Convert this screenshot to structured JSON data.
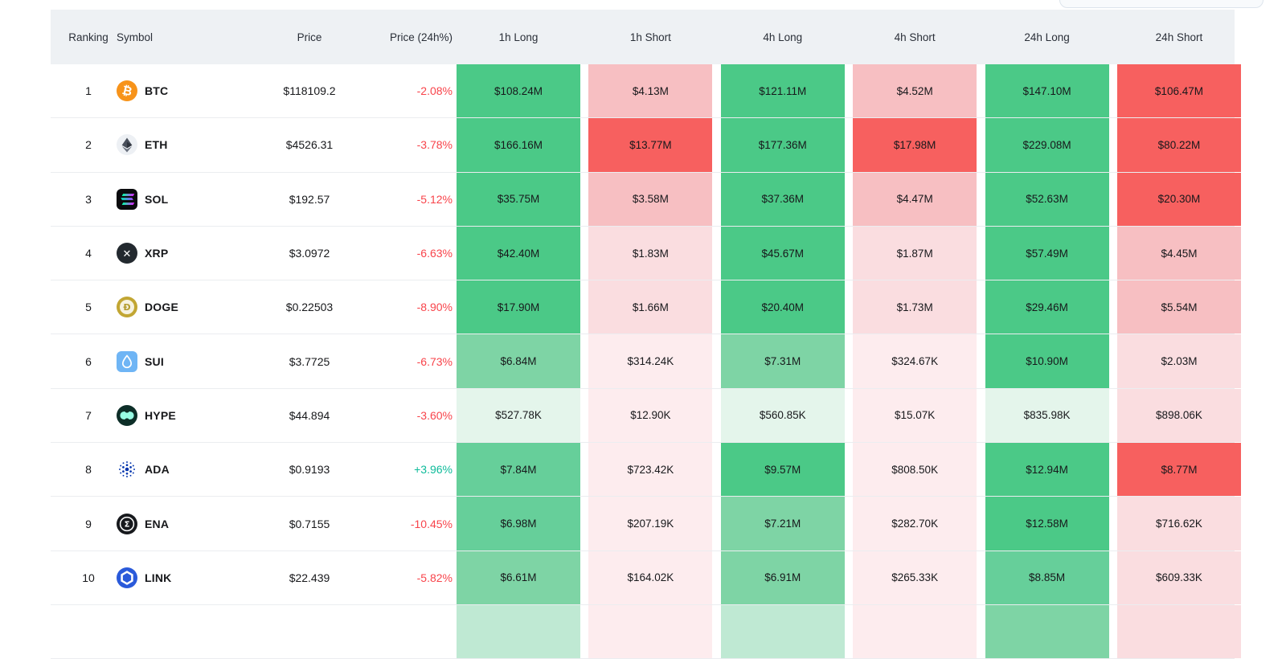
{
  "topbar": {
    "partial_button": {
      "label": ""
    }
  },
  "table": {
    "columns": [
      "Ranking",
      "Symbol",
      "Price",
      "Price (24h%)",
      "1h Long",
      "1h Short",
      "4h Long",
      "4h Short",
      "24h Long",
      "24h Short"
    ],
    "header_bg": "#eef1f4",
    "change_colors": {
      "up": "#0ebb9a",
      "down": "#f8444b"
    },
    "palette": {
      "g1": "#e4f5eb",
      "g2": "#bfe9d3",
      "g3": "#7ed4a5",
      "g4": "#66cf9a",
      "g5": "#4bc987",
      "r1": "#fdecee",
      "r2": "#fadde0",
      "r3": "#f7bfc2",
      "r4": "#f5a3a7",
      "r5": "#f7605f"
    },
    "icon_colors": {
      "btc": "#f7931a",
      "eth": "#edf0f4",
      "sol": "#0b0b0e",
      "xrp": "#23292f",
      "doge": "#c2a633",
      "sui": "#6fb5f5",
      "hype": "#0d2e28",
      "hype_fg": "#97fce4",
      "ada": "#0033ad",
      "ena": "#17191d",
      "link": "#2a5ada"
    },
    "rows": [
      {
        "rank": "1",
        "symbol": "BTC",
        "icon": "btc-icon",
        "price": "$118109.2",
        "change": "-2.08%",
        "dir": "down",
        "cells": [
          {
            "value": "$108.24M",
            "color": "g5"
          },
          {
            "value": "$4.13M",
            "color": "r3"
          },
          {
            "value": "$121.11M",
            "color": "g5"
          },
          {
            "value": "$4.52M",
            "color": "r3"
          },
          {
            "value": "$147.10M",
            "color": "g5"
          },
          {
            "value": "$106.47M",
            "color": "r5"
          }
        ]
      },
      {
        "rank": "2",
        "symbol": "ETH",
        "icon": "eth-icon",
        "price": "$4526.31",
        "change": "-3.78%",
        "dir": "down",
        "cells": [
          {
            "value": "$166.16M",
            "color": "g5"
          },
          {
            "value": "$13.77M",
            "color": "r5"
          },
          {
            "value": "$177.36M",
            "color": "g5"
          },
          {
            "value": "$17.98M",
            "color": "r5"
          },
          {
            "value": "$229.08M",
            "color": "g5"
          },
          {
            "value": "$80.22M",
            "color": "r5"
          }
        ]
      },
      {
        "rank": "3",
        "symbol": "SOL",
        "icon": "sol-icon",
        "price": "$192.57",
        "change": "-5.12%",
        "dir": "down",
        "cells": [
          {
            "value": "$35.75M",
            "color": "g5"
          },
          {
            "value": "$3.58M",
            "color": "r3"
          },
          {
            "value": "$37.36M",
            "color": "g5"
          },
          {
            "value": "$4.47M",
            "color": "r3"
          },
          {
            "value": "$52.63M",
            "color": "g5"
          },
          {
            "value": "$20.30M",
            "color": "r5"
          }
        ]
      },
      {
        "rank": "4",
        "symbol": "XRP",
        "icon": "xrp-icon",
        "price": "$3.0972",
        "change": "-6.63%",
        "dir": "down",
        "cells": [
          {
            "value": "$42.40M",
            "color": "g5"
          },
          {
            "value": "$1.83M",
            "color": "r2"
          },
          {
            "value": "$45.67M",
            "color": "g5"
          },
          {
            "value": "$1.87M",
            "color": "r2"
          },
          {
            "value": "$57.49M",
            "color": "g5"
          },
          {
            "value": "$4.45M",
            "color": "r3"
          }
        ]
      },
      {
        "rank": "5",
        "symbol": "DOGE",
        "icon": "doge-icon",
        "price": "$0.22503",
        "change": "-8.90%",
        "dir": "down",
        "cells": [
          {
            "value": "$17.90M",
            "color": "g5"
          },
          {
            "value": "$1.66M",
            "color": "r2"
          },
          {
            "value": "$20.40M",
            "color": "g5"
          },
          {
            "value": "$1.73M",
            "color": "r2"
          },
          {
            "value": "$29.46M",
            "color": "g5"
          },
          {
            "value": "$5.54M",
            "color": "r3"
          }
        ]
      },
      {
        "rank": "6",
        "symbol": "SUI",
        "icon": "sui-icon",
        "price": "$3.7725",
        "change": "-6.73%",
        "dir": "down",
        "cells": [
          {
            "value": "$6.84M",
            "color": "g3"
          },
          {
            "value": "$314.24K",
            "color": "r1"
          },
          {
            "value": "$7.31M",
            "color": "g3"
          },
          {
            "value": "$324.67K",
            "color": "r1"
          },
          {
            "value": "$10.90M",
            "color": "g5"
          },
          {
            "value": "$2.03M",
            "color": "r2"
          }
        ]
      },
      {
        "rank": "7",
        "symbol": "HYPE",
        "icon": "hype-icon",
        "price": "$44.894",
        "change": "-3.60%",
        "dir": "down",
        "cells": [
          {
            "value": "$527.78K",
            "color": "g1"
          },
          {
            "value": "$12.90K",
            "color": "r1"
          },
          {
            "value": "$560.85K",
            "color": "g1"
          },
          {
            "value": "$15.07K",
            "color": "r1"
          },
          {
            "value": "$835.98K",
            "color": "g1"
          },
          {
            "value": "$898.06K",
            "color": "r2"
          }
        ]
      },
      {
        "rank": "8",
        "symbol": "ADA",
        "icon": "ada-icon",
        "price": "$0.9193",
        "change": "+3.96%",
        "dir": "up",
        "cells": [
          {
            "value": "$7.84M",
            "color": "g4"
          },
          {
            "value": "$723.42K",
            "color": "r1"
          },
          {
            "value": "$9.57M",
            "color": "g5"
          },
          {
            "value": "$808.50K",
            "color": "r1"
          },
          {
            "value": "$12.94M",
            "color": "g5"
          },
          {
            "value": "$8.77M",
            "color": "r5"
          }
        ]
      },
      {
        "rank": "9",
        "symbol": "ENA",
        "icon": "ena-icon",
        "price": "$0.7155",
        "change": "-10.45%",
        "dir": "down",
        "cells": [
          {
            "value": "$6.98M",
            "color": "g4"
          },
          {
            "value": "$207.19K",
            "color": "r1"
          },
          {
            "value": "$7.21M",
            "color": "g3"
          },
          {
            "value": "$282.70K",
            "color": "r1"
          },
          {
            "value": "$12.58M",
            "color": "g5"
          },
          {
            "value": "$716.62K",
            "color": "r2"
          }
        ]
      },
      {
        "rank": "10",
        "symbol": "LINK",
        "icon": "link-icon",
        "price": "$22.439",
        "change": "-5.82%",
        "dir": "down",
        "cells": [
          {
            "value": "$6.61M",
            "color": "g3"
          },
          {
            "value": "$164.02K",
            "color": "r1"
          },
          {
            "value": "$6.91M",
            "color": "g3"
          },
          {
            "value": "$265.33K",
            "color": "r1"
          },
          {
            "value": "$8.85M",
            "color": "g4"
          },
          {
            "value": "$609.33K",
            "color": "r2"
          }
        ]
      }
    ],
    "partial_row": {
      "cells": [
        {
          "color": "g2"
        },
        {
          "color": "r1"
        },
        {
          "color": "g2"
        },
        {
          "color": "r1"
        },
        {
          "color": "g3"
        },
        {
          "color": "r2"
        }
      ]
    }
  }
}
